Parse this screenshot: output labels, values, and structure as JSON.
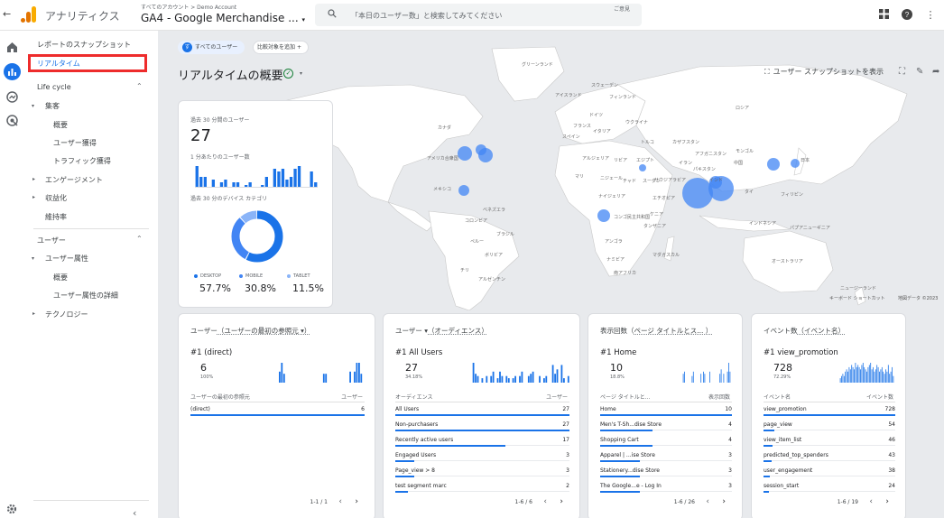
{
  "topbar": {
    "app_title": "アナリティクス",
    "account_crumb": "すべてのアカウント > Demo Account",
    "property_name": "GA4 - Google Merchandise ...",
    "search_placeholder": "「本日のユーザー数」と検索してみてください",
    "search_shortcut": "ご意見"
  },
  "sidebar": {
    "snapshot": "レポートのスナップショット",
    "realtime": "リアルタイム",
    "lifecycle_label": "Life cycle",
    "acquisition": "集客",
    "acq_overview": "概要",
    "user_acq": "ユーザー獲得",
    "traffic_acq": "トラフィック獲得",
    "engagement": "エンゲージメント",
    "monetization": "収益化",
    "retention": "維持率",
    "user_label": "ユーザー",
    "user_attrs": "ユーザー属性",
    "ua_overview": "概要",
    "ua_detail": "ユーザー属性の詳細",
    "tech": "テクノロジー"
  },
  "main": {
    "chip_all_users": "すべてのユーザー",
    "chip_badge": "す",
    "chip_compare": "比較対象を追加",
    "page_title": "リアルタイムの概要",
    "snapshot_btn": "ユーザー スナップショットを表示",
    "map_footer_shortcuts": "キーボード ショートカット",
    "map_footer_data": "地図データ ©2023"
  },
  "map_labels": {
    "greenland": "グリーンランド",
    "iceland": "アイスランド",
    "sweden": "スウェーデン",
    "finland": "フィンランド",
    "russia": "ロシア",
    "kazakhstan": "カザフスタン",
    "mongolia": "モンゴル",
    "china": "中国",
    "canada": "カナダ",
    "usa": "アメリカ合衆国",
    "mexico": "メキシコ",
    "venezuela": "ベネズエラ",
    "colombia": "コロンビア",
    "peru": "ペルー",
    "brazil": "ブラジル",
    "bolivia": "ボリビア",
    "argentina": "アルゼンチン",
    "chile": "チリ",
    "algeria": "アルジェリア",
    "libya": "リビア",
    "egypt": "エジプト",
    "mali": "マリ",
    "niger": "ニジェール",
    "chad": "チャド",
    "nigeria": "ナイジェリア",
    "sudan": "スーダン",
    "ethiopia": "エチオピア",
    "kenya": "ケニア",
    "tanzania": "タンザニア",
    "angola": "アンゴラ",
    "namibia": "ナミビア",
    "south_africa": "南アフリカ",
    "madagascar": "マダガスカル",
    "drc": "コンゴ民主共和国",
    "saudi": "サウジアラビア",
    "iran": "イラン",
    "pakistan": "パキスタン",
    "india": "インド",
    "afghanistan": "アフガニスタン",
    "turkey": "トルコ",
    "ukraine": "ウクライナ",
    "germany": "ドイツ",
    "france": "フランス",
    "spain": "スペイン",
    "italy": "イタリア",
    "japan": "日本",
    "indonesia": "インドネシア",
    "png": "パプアニューギニア",
    "australia": "オーストラリア",
    "nz": "ニュージーランド",
    "philippines": "フィリピン",
    "thailand": "タイ"
  },
  "realtime_card": {
    "users_label": "過去 30 分間のユーザー",
    "users_value": "27",
    "per_min_label": "1 分あたりのユーザー数",
    "device_label": "過去 30 分のデバイス カテゴリ",
    "desktop_label": "DESKTOP",
    "mobile_label": "MOBILE",
    "tablet_label": "TABLET",
    "desktop_value": "57.7%",
    "mobile_value": "30.8%",
    "tablet_value": "11.5%",
    "desktop_pct": 57.7,
    "mobile_pct": 30.8,
    "tablet_pct": 11.5,
    "per_min_bars": [
      8,
      4,
      4,
      0,
      3,
      0,
      2,
      3,
      0,
      2,
      2,
      0,
      1,
      2,
      0,
      0,
      1,
      4,
      0,
      7,
      6,
      7,
      3,
      4,
      7,
      8,
      0,
      0,
      6,
      2
    ],
    "colors": {
      "desktop": "#1a73e8",
      "mobile": "#4285f4",
      "tablet": "#8ab4f8"
    }
  },
  "cards": [
    {
      "title_prefix": "ユーザー",
      "title_link": "（ユーザーの最初の参照元 ▾）",
      "top_label": "#1  (direct)",
      "top_value": "6",
      "top_pct": "100%",
      "col1": "ユーザーの最初の参照元",
      "col2": "ユーザー",
      "pager": "1-1 / 1",
      "rows": [
        {
          "label": "(direct)",
          "value": "6",
          "pct": 100
        }
      ],
      "spark": [
        0,
        0,
        0,
        0,
        0,
        0,
        5,
        9,
        4,
        0,
        0,
        0,
        0,
        0,
        0,
        0,
        0,
        0,
        0,
        0,
        0,
        0,
        0,
        0,
        0,
        0,
        4,
        4,
        0,
        0,
        0,
        0,
        0,
        0,
        0,
        0,
        0,
        0,
        5,
        0,
        5,
        9,
        9,
        4,
        0
      ]
    },
    {
      "title_prefix": "ユーザー ▾",
      "title_link": "（オーディエンス）",
      "top_label": "#1  All Users",
      "top_value": "27",
      "top_pct": "34.18%",
      "col1": "オーディエンス",
      "col2": "ユーザー",
      "pager": "1-6 / 6",
      "rows": [
        {
          "label": "All Users",
          "value": "27",
          "pct": 100
        },
        {
          "label": "Non-purchasers",
          "value": "27",
          "pct": 100
        },
        {
          "label": "Recently active users",
          "value": "17",
          "pct": 63
        },
        {
          "label": "Engaged Users",
          "value": "3",
          "pct": 11
        },
        {
          "label": "Page_view > 8",
          "value": "3",
          "pct": 11
        },
        {
          "label": "test segment marc",
          "value": "2",
          "pct": 7
        }
      ],
      "spark": [
        0,
        9,
        4,
        3,
        0,
        2,
        0,
        3,
        0,
        3,
        5,
        0,
        2,
        5,
        3,
        0,
        3,
        2,
        0,
        2,
        3,
        0,
        3,
        5,
        0,
        0,
        3,
        4,
        5,
        0,
        0,
        3,
        0,
        2,
        3,
        0,
        0,
        8,
        4,
        6,
        0,
        8,
        2,
        0,
        3
      ]
    },
    {
      "title_prefix": "表示回数（",
      "title_link": "ページ タイトルとス... ）",
      "top_label": "#1  Home",
      "top_value": "10",
      "top_pct": "18.8%",
      "col1": "ページ タイトルと...",
      "col2": "表示回数",
      "pager": "1-6 / 26",
      "rows": [
        {
          "label": "Home",
          "value": "10",
          "pct": 100
        },
        {
          "label": "Men's T-Sh...dise Store",
          "value": "4",
          "pct": 40
        },
        {
          "label": "Shopping Cart",
          "value": "4",
          "pct": 40
        },
        {
          "label": "Apparel | ...ise Store",
          "value": "3",
          "pct": 30
        },
        {
          "label": "Stationery...dise Store",
          "value": "3",
          "pct": 30
        },
        {
          "label": "The Google...e - Log In",
          "value": "3",
          "pct": 30
        }
      ],
      "spark": [
        0,
        0,
        0,
        0,
        0,
        0,
        4,
        5,
        0,
        0,
        0,
        0,
        0,
        3,
        5,
        0,
        0,
        0,
        0,
        0,
        4,
        0,
        5,
        4,
        0,
        0,
        0,
        5,
        0,
        0,
        0,
        0,
        0,
        0,
        0,
        4,
        6,
        0,
        4,
        0,
        0,
        5,
        9,
        5,
        0
      ]
    },
    {
      "title_prefix": "イベント数",
      "title_link": "（イベント名）",
      "top_label": "#1  view_promotion",
      "top_value": "728",
      "top_pct": "72.29%",
      "col1": "イベント名",
      "col2": "イベント数",
      "pager": "1-6 / 19",
      "rows": [
        {
          "label": "view_promotion",
          "value": "728",
          "pct": 100
        },
        {
          "label": "page_view",
          "value": "54",
          "pct": 8
        },
        {
          "label": "view_item_list",
          "value": "46",
          "pct": 7
        },
        {
          "label": "predicted_top_spenders",
          "value": "43",
          "pct": 6
        },
        {
          "label": "user_engagement",
          "value": "38",
          "pct": 5
        },
        {
          "label": "session_start",
          "value": "24",
          "pct": 4
        }
      ],
      "spark": [
        0,
        2,
        3,
        4,
        3,
        5,
        6,
        5,
        7,
        6,
        8,
        7,
        6,
        9,
        7,
        8,
        7,
        6,
        8,
        9,
        7,
        6,
        5,
        7,
        8,
        9,
        6,
        7,
        5,
        6,
        8,
        7,
        5,
        6,
        7,
        5,
        4,
        6,
        5,
        8,
        4,
        5,
        7,
        3,
        0
      ]
    }
  ]
}
